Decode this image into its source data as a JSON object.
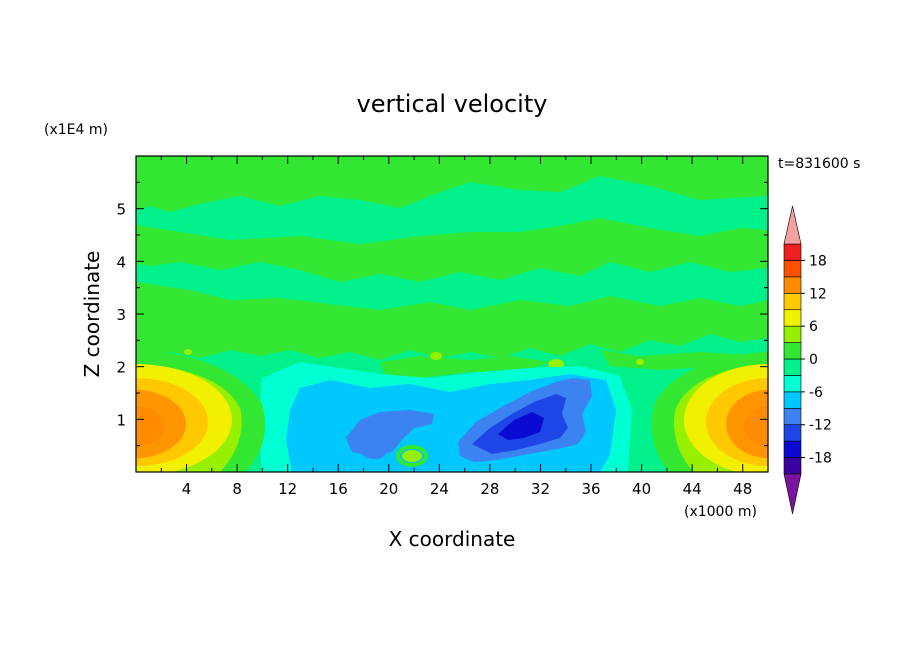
{
  "chart_data": {
    "type": "heatmap",
    "title": "vertical velocity",
    "xlabel": "X coordinate",
    "ylabel": "Z coordinate",
    "x_scale_label": "(x1000 m)",
    "y_scale_label": "(x1E4 m)",
    "time_label": "t=831600 s",
    "xlim": [
      0,
      50
    ],
    "ylim": [
      0,
      6
    ],
    "x_ticks": [
      "4",
      "8",
      "12",
      "16",
      "20",
      "24",
      "28",
      "32",
      "36",
      "40",
      "44",
      "48"
    ],
    "y_ticks": [
      "1",
      "2",
      "3",
      "4",
      "5"
    ],
    "colorbar": {
      "ticks": [
        "18",
        "12",
        "6",
        "0",
        "-6",
        "-12",
        "-18"
      ],
      "levels": [
        -21,
        -18,
        -15,
        -12,
        -9,
        -6,
        -3,
        0,
        3,
        6,
        9,
        12,
        15,
        18,
        21
      ],
      "colors": [
        "#7a14a0",
        "#3c00a0",
        "#0a0ad2",
        "#1e46e6",
        "#3c82f0",
        "#00c8ff",
        "#00ffd2",
        "#00f08c",
        "#32e632",
        "#96f000",
        "#f0f000",
        "#ffc800",
        "#ff8c00",
        "#ff5000",
        "#f01e1e",
        "#f5a0a0"
      ]
    },
    "features": [
      {
        "name": "updraft-left",
        "x": 0.5,
        "z": 0.9,
        "peak": 12
      },
      {
        "name": "updraft-right",
        "x": 49.5,
        "z": 0.9,
        "peak": 12
      },
      {
        "name": "downdraft-center",
        "x": 30,
        "z": 0.9,
        "peak": -15
      },
      {
        "name": "downdraft-secondary",
        "x": 19.5,
        "z": 0.8,
        "peak": -9
      }
    ]
  }
}
